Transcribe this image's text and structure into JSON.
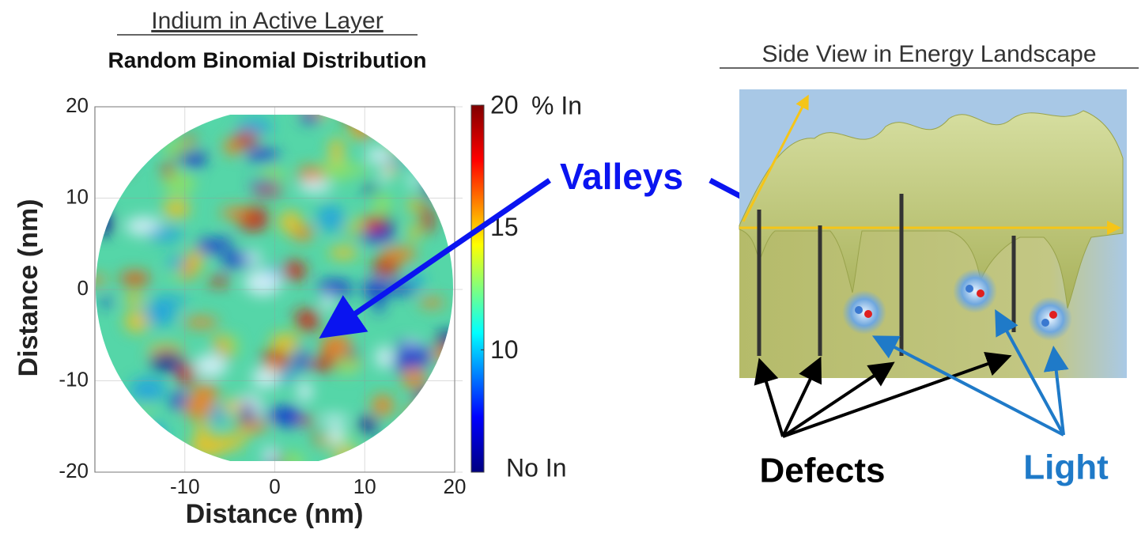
{
  "left": {
    "title": "Indium in Active Layer",
    "subtitle": "Random Binomial Distribution",
    "x_label": "Distance (nm)",
    "y_label": "Distance (nm)",
    "xlim": [
      -20,
      20
    ],
    "ylim": [
      -20,
      20
    ],
    "xticks": [
      -10,
      0,
      10,
      20
    ],
    "yticks": [
      -20,
      -10,
      0,
      10,
      20
    ],
    "colorbar": {
      "lim": [
        5,
        20
      ],
      "ticks": [
        20,
        15,
        10
      ],
      "unit_label": "% In",
      "bottom_label": "No In"
    }
  },
  "callout": "Valleys",
  "right": {
    "title": "Side View in Energy Landscape",
    "defects_label": "Defects",
    "light_label": "Light"
  }
}
